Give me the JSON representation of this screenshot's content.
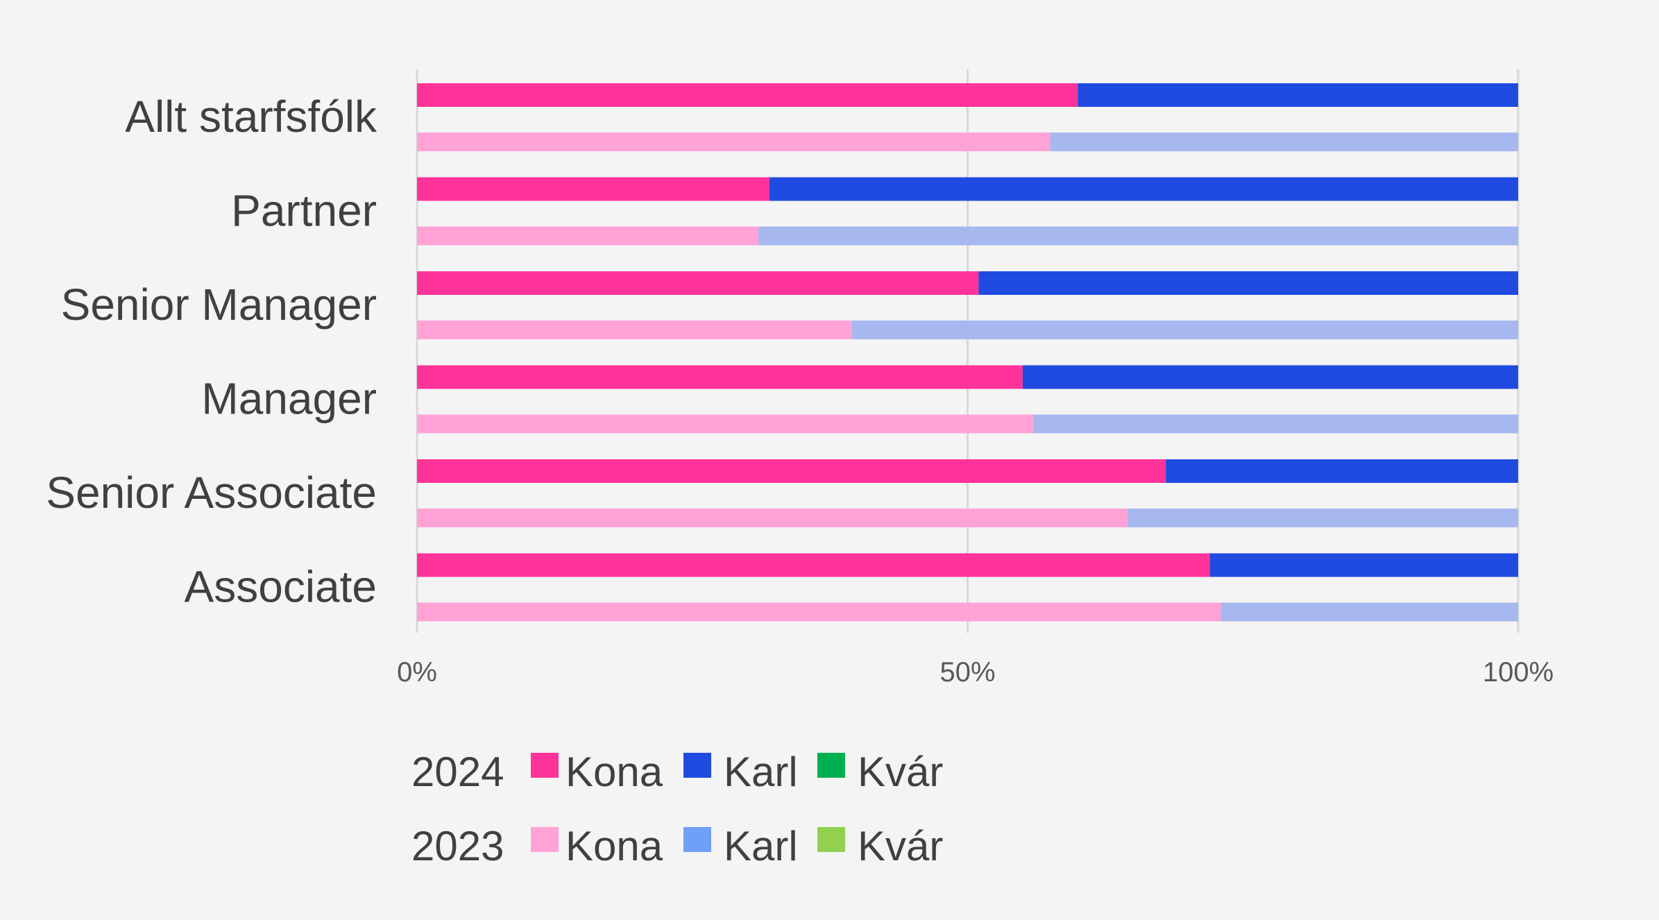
{
  "chart_data": {
    "type": "bar",
    "orientation": "horizontal",
    "stacked": "100%",
    "categories": [
      "Allt starfsfólk",
      "Partner",
      "Senior Manager",
      "Manager",
      "Senior Associate",
      "Associate"
    ],
    "x_ticks": [
      "0%",
      "50%",
      "100%"
    ],
    "xlim": [
      0,
      100
    ],
    "grid": true,
    "series": [
      {
        "name": "Kona",
        "year": "2024",
        "color": "#ff3399",
        "values": [
          60,
          32,
          51,
          55,
          68,
          72
        ]
      },
      {
        "name": "Karl",
        "year": "2024",
        "color": "#1f4be0",
        "values": [
          40,
          68,
          49,
          45,
          32,
          28
        ]
      },
      {
        "name": "Kvár",
        "year": "2024",
        "color": "#00b050",
        "values": [
          0,
          0,
          0,
          0,
          0,
          0
        ]
      },
      {
        "name": "Kona",
        "year": "2023",
        "color": "#ffa3d7",
        "values": [
          57.5,
          31,
          39.5,
          56,
          64.5,
          73
        ]
      },
      {
        "name": "Karl",
        "year": "2023",
        "color": "#a7b8f0",
        "legend_color": "#6fa0f8",
        "values": [
          42.5,
          69,
          60.5,
          44,
          35.5,
          27
        ]
      },
      {
        "name": "Kvár",
        "year": "2023",
        "color": "#92d050",
        "values": [
          0,
          0,
          0,
          0,
          0,
          0
        ]
      }
    ],
    "legend": {
      "placement": "bottom",
      "rows": [
        {
          "label": "2024",
          "items": [
            {
              "name": "Kona",
              "color": "#ff3399"
            },
            {
              "name": "Karl",
              "color": "#1f4be0"
            },
            {
              "name": "Kvár",
              "color": "#00b050"
            }
          ]
        },
        {
          "label": "2023",
          "items": [
            {
              "name": "Kona",
              "color": "#ffa3d7"
            },
            {
              "name": "Karl",
              "color": "#6fa0f8"
            },
            {
              "name": "Kvár",
              "color": "#92d050"
            }
          ]
        }
      ]
    }
  }
}
